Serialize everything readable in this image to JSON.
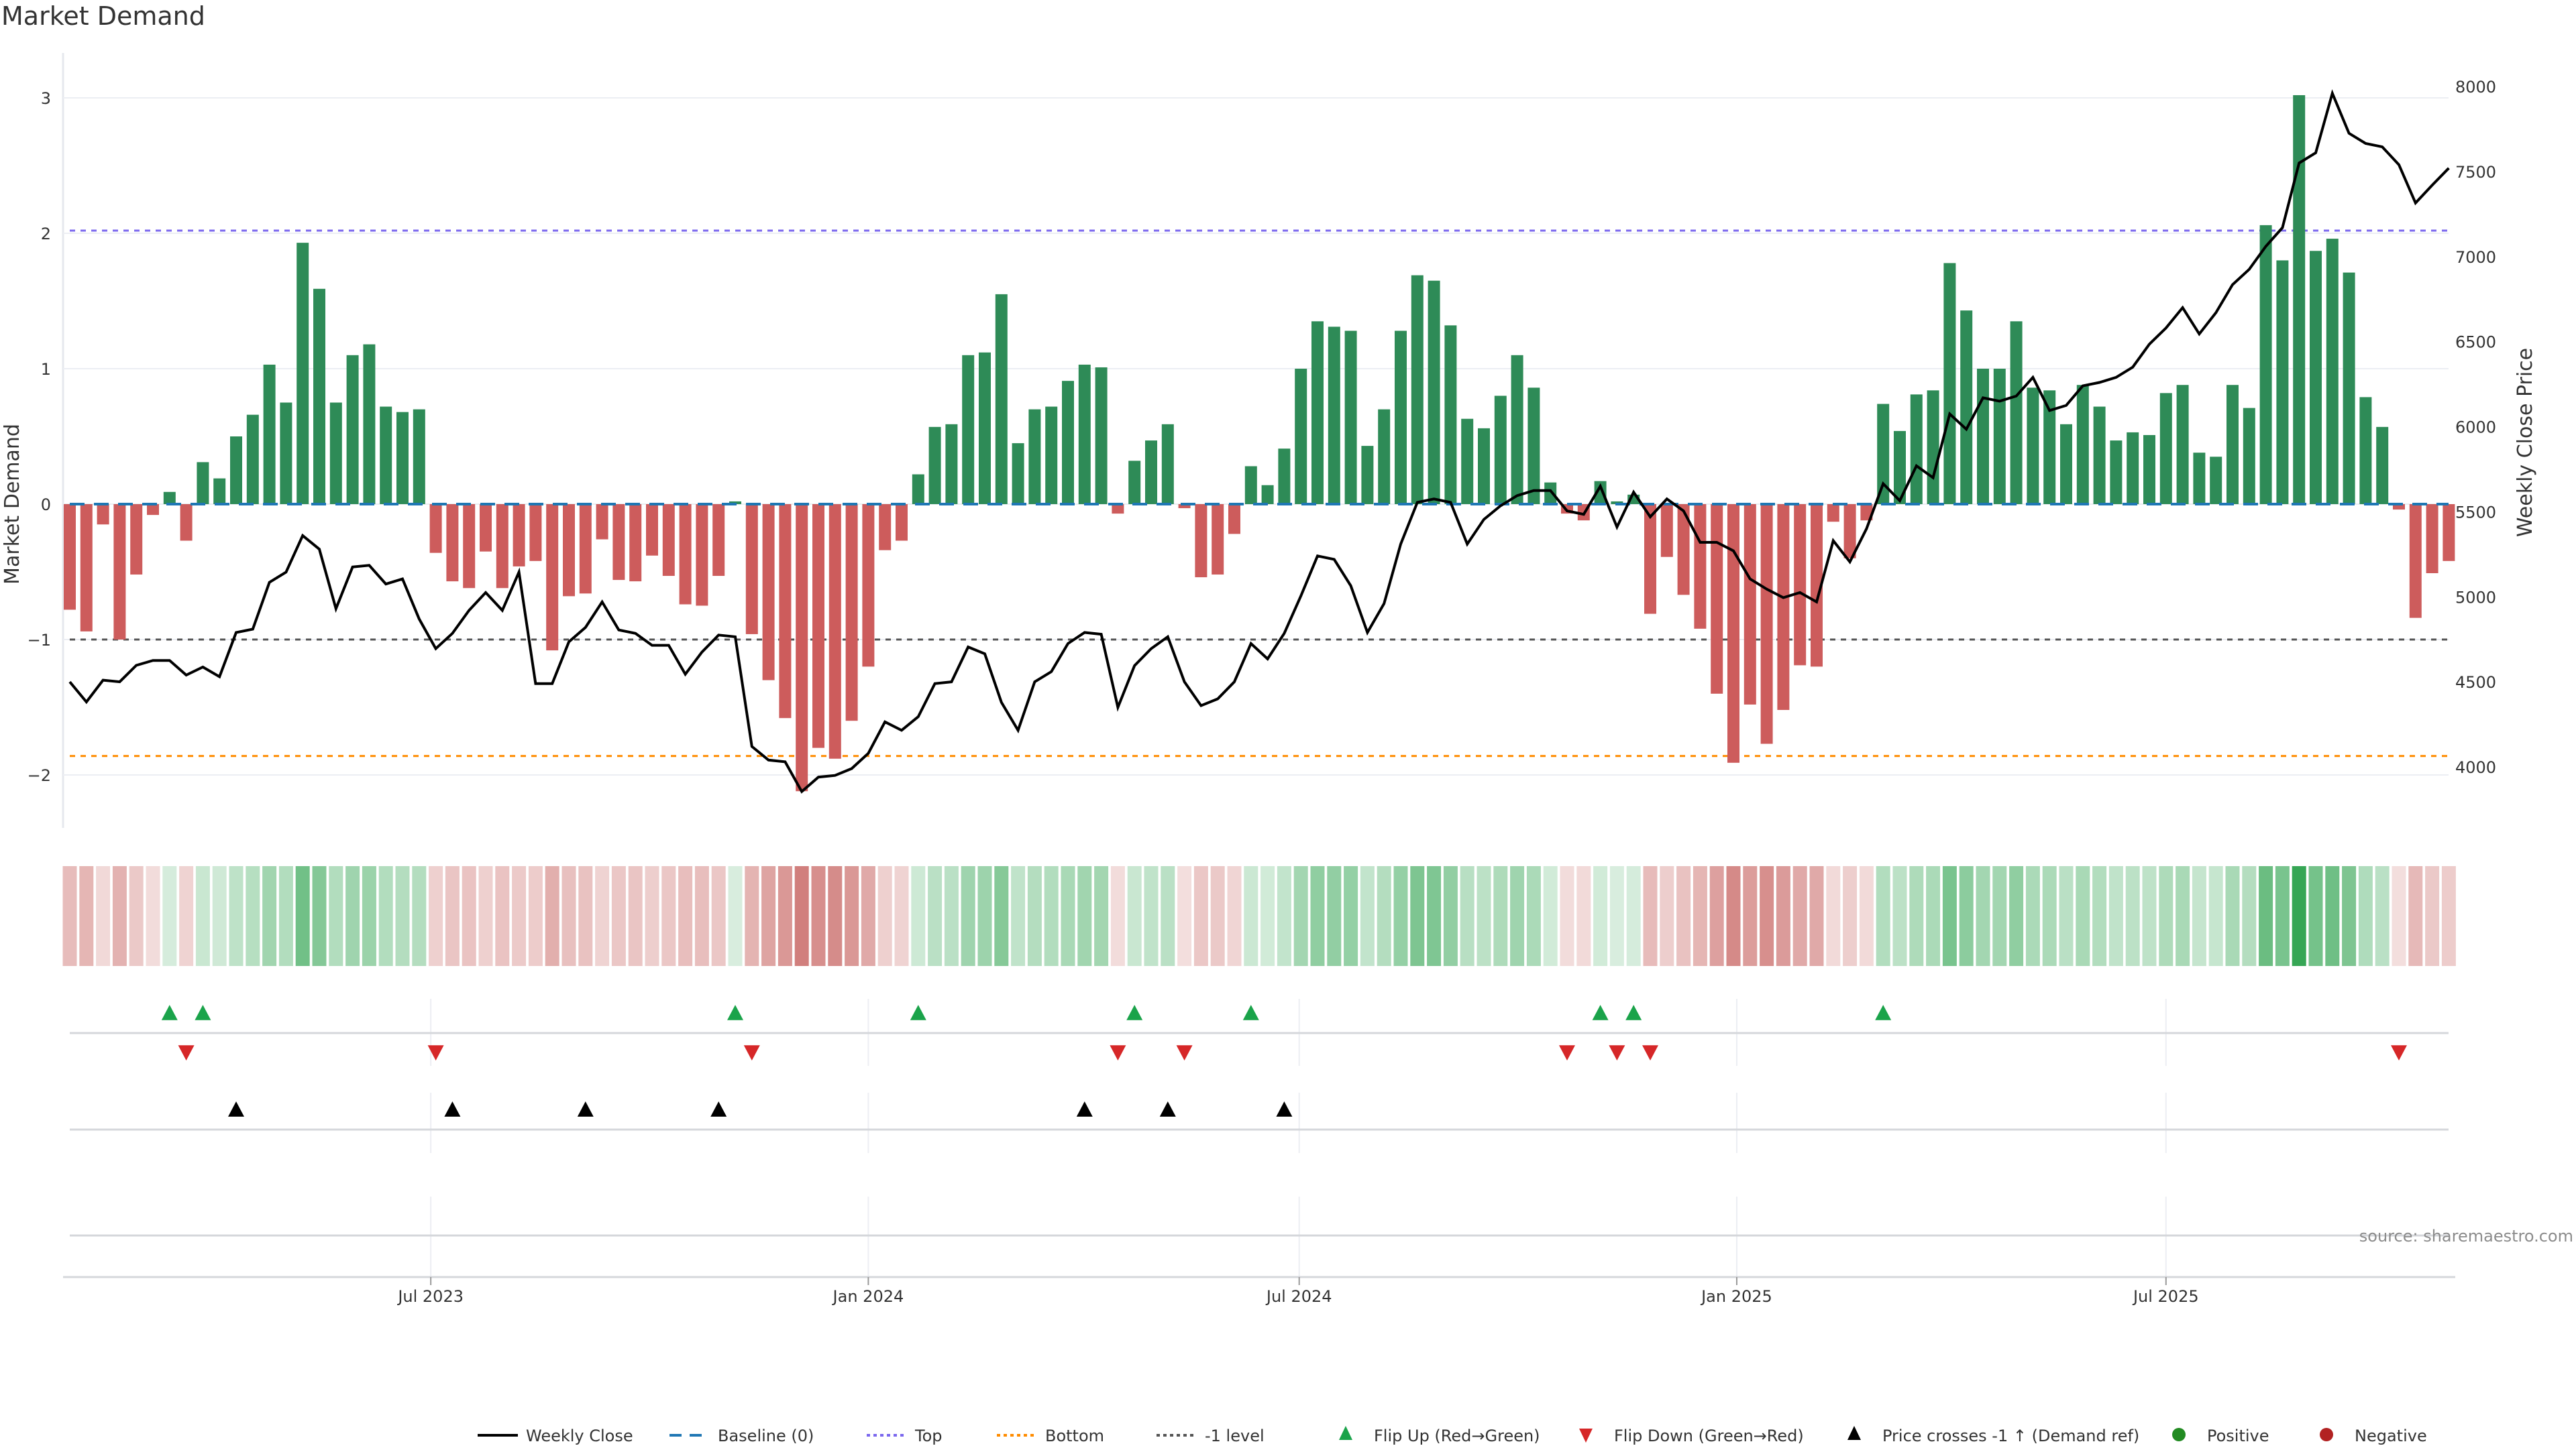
{
  "title": "Market Demand",
  "source": "source: sharemaestro.com",
  "colors": {
    "positive_bar": "#2e8b57",
    "negative_bar": "#cd5c5c",
    "heat_positive": "#2ea24e",
    "heat_negative": "#c0504d",
    "price_line": "#000000",
    "baseline": "#1f77b4",
    "top": "#7b68ee",
    "bottom": "#ff8c00",
    "minus_one": "#555555",
    "flip_up": "#1aa34a",
    "flip_down": "#d62728",
    "price_cross": "#000000",
    "positive_dot": "#228b22",
    "negative_dot": "#b22222"
  },
  "chart_data": {
    "type": "bar",
    "title": "Market Demand",
    "ylabel": "Market Demand",
    "y2label": "Weekly Close Price",
    "ylim": [
      -2.45,
      3.3
    ],
    "y2lim": [
      3550,
      8300
    ],
    "yticks": [
      {
        "value": 3,
        "label": "3"
      },
      {
        "value": 2,
        "label": "2"
      },
      {
        "value": 1,
        "label": "1"
      },
      {
        "value": 0,
        "label": "0"
      },
      {
        "value": -1,
        "label": "−1"
      },
      {
        "value": -2,
        "label": "−2"
      }
    ],
    "y2ticks": [
      {
        "value": 8000,
        "label": "8000"
      },
      {
        "value": 7500,
        "label": "7500"
      },
      {
        "value": 7000,
        "label": "7000"
      },
      {
        "value": 6500,
        "label": "6500"
      },
      {
        "value": 6000,
        "label": "6000"
      },
      {
        "value": 5500,
        "label": "5500"
      },
      {
        "value": 5000,
        "label": "5000"
      },
      {
        "value": 4500,
        "label": "4500"
      },
      {
        "value": 4000,
        "label": "4000"
      }
    ],
    "xticks": [
      {
        "week": 21.7,
        "label": "Jul 2023"
      },
      {
        "week": 48.0,
        "label": "Jan 2024"
      },
      {
        "week": 73.9,
        "label": "Jul 2024"
      },
      {
        "week": 100.2,
        "label": "Jan 2025"
      },
      {
        "week": 126.0,
        "label": "Jul 2025"
      }
    ],
    "reference_lines": {
      "baseline": 0,
      "top": 2.02,
      "bottom": -1.86,
      "minus_one": -1
    },
    "demand": [
      -0.78,
      -0.94,
      -0.15,
      -1.0,
      -0.52,
      -0.08,
      0.09,
      -0.27,
      0.31,
      0.19,
      0.5,
      0.66,
      1.03,
      0.75,
      1.93,
      1.59,
      0.75,
      1.1,
      1.18,
      0.72,
      0.68,
      0.7,
      -0.36,
      -0.57,
      -0.62,
      -0.35,
      -0.62,
      -0.46,
      -0.42,
      -1.08,
      -0.68,
      -0.66,
      -0.26,
      -0.56,
      -0.57,
      -0.38,
      -0.53,
      -0.74,
      -0.75,
      -0.53,
      0.02,
      -0.96,
      -1.3,
      -1.58,
      -2.12,
      -1.8,
      -1.88,
      -1.6,
      -1.2,
      -0.34,
      -0.27,
      0.22,
      0.57,
      0.59,
      1.1,
      1.12,
      1.55,
      0.45,
      0.7,
      0.72,
      0.91,
      1.03,
      1.01,
      -0.07,
      0.32,
      0.47,
      0.59,
      -0.03,
      -0.54,
      -0.52,
      -0.22,
      0.28,
      0.14,
      0.41,
      1.0,
      1.35,
      1.31,
      1.28,
      0.43,
      0.7,
      1.28,
      1.69,
      1.65,
      1.32,
      0.63,
      0.56,
      0.8,
      1.1,
      0.86,
      0.16,
      -0.07,
      -0.12,
      0.17,
      0.02,
      0.07,
      -0.81,
      -0.39,
      -0.67,
      -0.92,
      -1.4,
      -1.91,
      -1.48,
      -1.77,
      -1.52,
      -1.19,
      -1.2,
      -0.13,
      -0.4,
      -0.12,
      0.74,
      0.54,
      0.81,
      0.84,
      1.78,
      1.43,
      1.0,
      1.0,
      1.35,
      0.86,
      0.84,
      0.59,
      0.88,
      0.72,
      0.47,
      0.53,
      0.51,
      0.82,
      0.88,
      0.38,
      0.35,
      0.88,
      0.71,
      2.06,
      1.8,
      3.02,
      1.87,
      1.96,
      1.71,
      0.79,
      0.57,
      -0.04,
      -0.84,
      -0.51,
      -0.42
    ],
    "weekly_close": [
      4500,
      4382,
      4510,
      4500,
      4597,
      4626,
      4626,
      4540,
      4587,
      4530,
      4790,
      4810,
      5085,
      5145,
      5360,
      5280,
      4930,
      5175,
      5185,
      5075,
      5105,
      4870,
      4695,
      4785,
      4920,
      5025,
      4920,
      5145,
      4490,
      4490,
      4735,
      4820,
      4970,
      4805,
      4785,
      4715,
      4715,
      4545,
      4675,
      4775,
      4765,
      4120,
      4040,
      4030,
      3855,
      3940,
      3950,
      3990,
      4080,
      4265,
      4215,
      4295,
      4490,
      4500,
      4705,
      4665,
      4380,
      4215,
      4500,
      4560,
      4725,
      4790,
      4780,
      4350,
      4595,
      4695,
      4765,
      4500,
      4360,
      4400,
      4500,
      4725,
      4635,
      4785,
      5005,
      5240,
      5220,
      5065,
      4790,
      4960,
      5310,
      5555,
      5575,
      5555,
      5310,
      5455,
      5535,
      5595,
      5625,
      5625,
      5505,
      5485,
      5650,
      5410,
      5615,
      5470,
      5575,
      5505,
      5320,
      5320,
      5270,
      5105,
      5045,
      4995,
      5025,
      4970,
      5330,
      5205,
      5400,
      5665,
      5565,
      5770,
      5700,
      6075,
      5985,
      6170,
      6150,
      6180,
      6290,
      6095,
      6125,
      6240,
      6260,
      6290,
      6350,
      6485,
      6580,
      6700,
      6545,
      6670,
      6835,
      6925,
      7060,
      7170,
      7550,
      7610,
      7960,
      7725,
      7665,
      7645,
      7540,
      7315,
      7420,
      7520
    ],
    "flip_up_weeks": [
      6,
      8,
      40,
      51,
      64,
      71,
      92,
      94,
      109
    ],
    "flip_down_weeks": [
      7,
      22,
      41,
      63,
      67,
      90,
      93,
      95,
      140
    ],
    "price_cross_weeks": [
      10,
      23,
      31,
      39,
      61,
      66,
      73
    ]
  },
  "legend": [
    {
      "key": "weekly_close",
      "label": "Weekly Close",
      "icon": "line-solid"
    },
    {
      "key": "baseline",
      "label": "Baseline (0)",
      "icon": "line-dashed"
    },
    {
      "key": "top",
      "label": "Top",
      "icon": "line-dotted"
    },
    {
      "key": "bottom",
      "label": "Bottom",
      "icon": "line-dotted"
    },
    {
      "key": "minus_one",
      "label": "-1 level",
      "icon": "line-dotted"
    },
    {
      "key": "flip_up",
      "label": "Flip Up (Red→Green)",
      "icon": "triangle-up"
    },
    {
      "key": "flip_down",
      "label": "Flip Down (Green→Red)",
      "icon": "triangle-down"
    },
    {
      "key": "price_cross",
      "label": "Price crosses -1 ↑ (Demand ref)",
      "icon": "triangle-up"
    },
    {
      "key": "positive_dot",
      "label": "Positive",
      "icon": "circle"
    },
    {
      "key": "negative_dot",
      "label": "Negative",
      "icon": "circle"
    }
  ]
}
